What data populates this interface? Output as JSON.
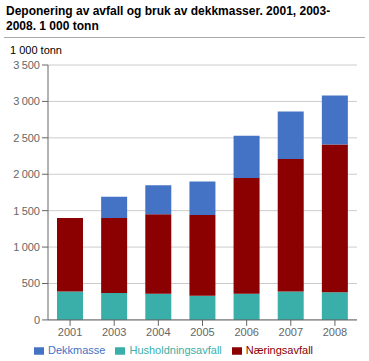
{
  "chart_data": {
    "type": "bar",
    "title": "Deponering av avfall og bruk av dekkmasser. 2001, 2003-",
    "subtitle": "2008. 1 000 tonn",
    "y_label": "1 000 tonn",
    "categories": [
      "2001",
      "2003",
      "2004",
      "2005",
      "2006",
      "2007",
      "2008"
    ],
    "series": [
      {
        "name": "Husholdningsavfall",
        "color": "#3aafa9",
        "values": [
          390,
          370,
          360,
          330,
          360,
          390,
          380
        ]
      },
      {
        "name": "Næringsavfall",
        "color": "#8b0000",
        "values": [
          1010,
          1030,
          1090,
          1110,
          1590,
          1820,
          2030
        ]
      },
      {
        "name": "Dekkmasse",
        "color": "#4472c4",
        "values": [
          0,
          290,
          400,
          460,
          580,
          650,
          670
        ]
      }
    ],
    "stacked": true,
    "ylim": [
      0,
      3500
    ],
    "yticks": [
      0,
      500,
      {
        "value": 1000,
        "label": "1 000"
      },
      {
        "value": 1500,
        "label": "1 500"
      },
      {
        "value": 2000,
        "label": "2 000"
      },
      {
        "value": 2500,
        "label": "2 500"
      },
      {
        "value": 3000,
        "label": "3 000"
      },
      {
        "value": 3500,
        "label": "3 500"
      }
    ],
    "grid": true,
    "legend": "bottom"
  }
}
